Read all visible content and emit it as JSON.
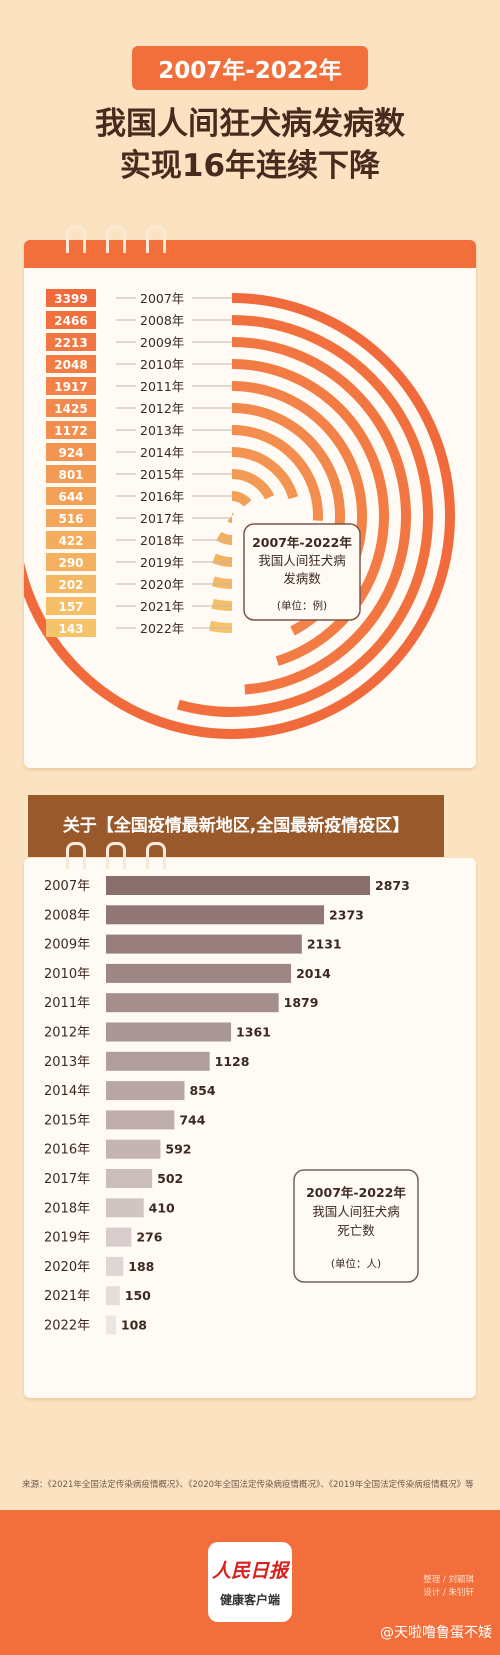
{
  "header": {
    "badge": "2007年-2022年",
    "title_line1": "我国人间狂犬病发病数",
    "title_line2": "实现16年连续下降"
  },
  "overlay_text": "关于【全国疫情最新地区,全国最新疫情疫区】",
  "chart_data": [
    {
      "type": "bar",
      "title": "2007年-2022年我国人间狂犬病发病数",
      "unit": "(单位：例)",
      "categories": [
        "2007年",
        "2008年",
        "2009年",
        "2010年",
        "2011年",
        "2012年",
        "2013年",
        "2014年",
        "2015年",
        "2016年",
        "2017年",
        "2018年",
        "2019年",
        "2020年",
        "2021年",
        "2022年"
      ],
      "values": [
        3399,
        2466,
        2213,
        2048,
        1917,
        1425,
        1172,
        924,
        801,
        644,
        516,
        422,
        290,
        202,
        157,
        143
      ]
    },
    {
      "type": "bar",
      "title": "2007年-2022年我国人间狂犬病死亡数",
      "unit": "(单位：人)",
      "categories": [
        "2007年",
        "2008年",
        "2009年",
        "2010年",
        "2011年",
        "2012年",
        "2013年",
        "2014年",
        "2015年",
        "2016年",
        "2017年",
        "2018年",
        "2019年",
        "2020年",
        "2021年",
        "2022年"
      ],
      "values": [
        2873,
        2373,
        2131,
        2014,
        1879,
        1361,
        1128,
        854,
        744,
        592,
        502,
        410,
        276,
        188,
        150,
        108
      ]
    }
  ],
  "chart1_box": {
    "line1": "2007年-2022年",
    "line2": "我国人间狂犬病",
    "line3": "发病数",
    "unit": "(单位：例)"
  },
  "chart2_box": {
    "line1": "2007年-2022年",
    "line2": "我国人间狂犬病",
    "line3": "死亡数",
    "unit": "(单位：人)"
  },
  "colors": {
    "chart1_start": "#f16a3b",
    "chart1_end": "#f5c46a",
    "chart2_start": "#8a6e6c",
    "chart2_end": "#ebe5e4"
  },
  "source": "来源：《2021年全国法定传染病疫情概况》、《2020年全国法定传染病疫情概况》、《2019年全国法定传染病疫情概况》等",
  "footer": {
    "logo_line1": "人民日报",
    "logo_line2": "健康客户端",
    "credit1": "整理 / 刘颖琪",
    "credit2": "设计 / 朱钊轩",
    "watermark": "@天啦噜鲁蛋不矮"
  }
}
